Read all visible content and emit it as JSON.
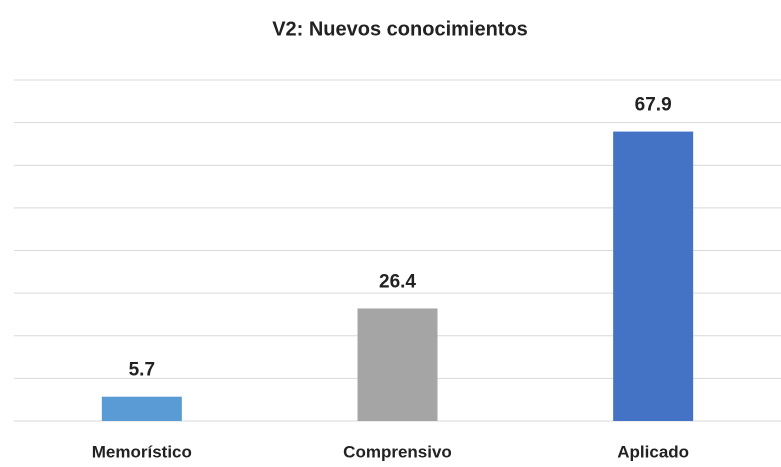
{
  "chart_data": {
    "type": "bar",
    "title": "V2: Nuevos conocimientos",
    "categories": [
      "Memorístico",
      "Comprensivo",
      "Aplicado"
    ],
    "values": [
      5.7,
      26.4,
      67.9
    ],
    "colors": [
      "#5b9bd5",
      "#a5a5a5",
      "#4472c4"
    ],
    "ylim": [
      0,
      80
    ],
    "yticks": [
      0,
      10,
      20,
      30,
      40,
      50,
      60,
      70,
      80
    ],
    "grid": true
  }
}
